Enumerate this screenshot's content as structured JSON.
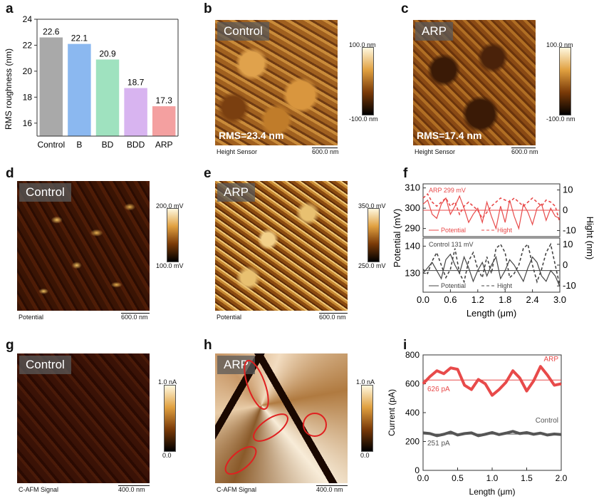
{
  "panel_letters": {
    "a": "a",
    "b": "b",
    "c": "c",
    "d": "d",
    "e": "e",
    "f": "f",
    "g": "g",
    "h": "h",
    "i": "i"
  },
  "chart_data": [
    {
      "id": "a",
      "type": "bar",
      "categories": [
        "Control",
        "B",
        "BD",
        "BDD",
        "ARP"
      ],
      "values": [
        22.6,
        22.1,
        20.9,
        18.7,
        17.3
      ],
      "value_labels": [
        "22.6",
        "22.1",
        "20.9",
        "18.7",
        "17.3"
      ],
      "colors": [
        "#a9a9a9",
        "#8bb8f0",
        "#9fe2bf",
        "#d8b4f0",
        "#f4a0a0"
      ],
      "title": "",
      "xlabel": "",
      "ylabel": "RMS roughness (nm)",
      "ylim": [
        15,
        24
      ],
      "yticks": [
        "16",
        "18",
        "20",
        "22",
        "24"
      ]
    },
    {
      "id": "f",
      "type": "line",
      "xlabel": "Length (μm)",
      "ylabel_left": "Potential (mV)",
      "ylabel_right": "Hight (nm)",
      "xlim": [
        0,
        3.0
      ],
      "xticks": [
        "0.0",
        "0.6",
        "1.2",
        "1.8",
        "2.4",
        "3.0"
      ],
      "top": {
        "annotation": "ARP 299 mV",
        "ylim": [
          286,
          312
        ],
        "yticks": [
          "290",
          "300",
          "310"
        ],
        "y2lim": [
          -13,
          13
        ],
        "y2ticks": [
          "-10",
          "0",
          "10"
        ],
        "mean": 299,
        "legend": [
          "Potential",
          "Hight"
        ],
        "x": [
          0,
          0.1,
          0.2,
          0.3,
          0.4,
          0.5,
          0.6,
          0.7,
          0.8,
          0.9,
          1.0,
          1.1,
          1.2,
          1.3,
          1.4,
          1.5,
          1.6,
          1.7,
          1.8,
          1.9,
          2.0,
          2.1,
          2.2,
          2.3,
          2.4,
          2.5,
          2.6,
          2.7,
          2.8,
          2.9,
          3.0
        ],
        "potential": [
          302,
          304,
          297,
          295,
          302,
          305,
          297,
          301,
          306,
          300,
          293,
          297,
          300,
          293,
          303,
          296,
          290,
          301,
          293,
          304,
          296,
          290,
          302,
          298,
          292,
          300,
          302,
          294,
          300,
          296,
          295
        ],
        "height": [
          6,
          8,
          4,
          2,
          4,
          6,
          2,
          4,
          -2,
          2,
          4,
          2,
          0,
          -4,
          -1,
          2,
          4,
          6,
          5,
          4,
          6,
          4,
          2,
          4,
          6,
          4,
          2,
          5,
          4,
          2,
          -6
        ]
      },
      "bottom": {
        "annotation": "Control  131 mV",
        "ylim": [
          123,
          143
        ],
        "yticks": [
          "130",
          "140"
        ],
        "y2lim": [
          -13,
          13
        ],
        "y2ticks": [
          "-10",
          "0",
          "10"
        ],
        "mean": 131,
        "legend": [
          "Potential",
          "Hight"
        ],
        "x": [
          0,
          0.1,
          0.2,
          0.3,
          0.4,
          0.5,
          0.6,
          0.7,
          0.8,
          0.9,
          1.0,
          1.1,
          1.2,
          1.3,
          1.4,
          1.5,
          1.6,
          1.7,
          1.8,
          1.9,
          2.0,
          2.1,
          2.2,
          2.3,
          2.4,
          2.5,
          2.6,
          2.7,
          2.8,
          2.9,
          3.0
        ],
        "potential": [
          130,
          132,
          134,
          131,
          128,
          135,
          137,
          133,
          130,
          136,
          132,
          127,
          131,
          134,
          129,
          133,
          136,
          128,
          131,
          135,
          133,
          130,
          127,
          132,
          136,
          134,
          129,
          127,
          131,
          129,
          125
        ],
        "height": [
          -2,
          -4,
          2,
          6,
          0,
          -6,
          -2,
          8,
          -4,
          -8,
          2,
          6,
          -2,
          -6,
          4,
          -4,
          8,
          10,
          6,
          -6,
          -4,
          0,
          8,
          10,
          0,
          -8,
          -2,
          6,
          10,
          0,
          -10
        ]
      }
    },
    {
      "id": "i",
      "type": "line",
      "xlabel": "Length (μm)",
      "ylabel": "Current (pA)",
      "xlim": [
        0,
        2.0
      ],
      "xticks": [
        "0.0",
        "0.5",
        "1.0",
        "1.5",
        "2.0"
      ],
      "ylim": [
        0,
        800
      ],
      "yticks": [
        "0",
        "200",
        "400",
        "600",
        "800"
      ],
      "series": [
        {
          "name": "ARP",
          "mean": 626,
          "mean_label": "626 pA",
          "color": "#e84a4a",
          "x": [
            0,
            0.1,
            0.2,
            0.3,
            0.4,
            0.5,
            0.6,
            0.7,
            0.8,
            0.9,
            1.0,
            1.1,
            1.2,
            1.3,
            1.4,
            1.5,
            1.6,
            1.7,
            1.8,
            1.9,
            2.0
          ],
          "y": [
            600,
            650,
            690,
            670,
            710,
            700,
            590,
            560,
            630,
            600,
            520,
            560,
            610,
            690,
            640,
            550,
            620,
            720,
            660,
            590,
            600
          ]
        },
        {
          "name": "Control",
          "mean": 251,
          "mean_label": "251 pA",
          "color": "#555555",
          "x": [
            0,
            0.1,
            0.2,
            0.3,
            0.4,
            0.5,
            0.6,
            0.7,
            0.8,
            0.9,
            1.0,
            1.1,
            1.2,
            1.3,
            1.4,
            1.5,
            1.6,
            1.7,
            1.8,
            1.9,
            2.0
          ],
          "y": [
            260,
            255,
            240,
            250,
            265,
            245,
            255,
            260,
            240,
            250,
            262,
            248,
            258,
            270,
            255,
            262,
            250,
            258,
            245,
            252,
            248
          ]
        }
      ]
    }
  ],
  "images": {
    "b": {
      "tag": "Control",
      "rms": "RMS=23.4 nm",
      "sensor": "Height Sensor",
      "scale": "600.0 nm",
      "cmax": "100.0 nm",
      "cmin": "-100.0 nm"
    },
    "c": {
      "tag": "ARP",
      "rms": "RMS=17.4 nm",
      "sensor": "Height Sensor",
      "scale": "600.0 nm",
      "cmax": "100.0 nm",
      "cmin": "-100.0 nm"
    },
    "d": {
      "tag": "Control",
      "sensor": "Potential",
      "scale": "600.0 nm",
      "cmax": "200.0 mV",
      "cmin": "100.0 mV"
    },
    "e": {
      "tag": "ARP",
      "sensor": "Potential",
      "scale": "600.0 nm",
      "cmax": "350.0 mV",
      "cmin": "250.0 mV"
    },
    "g": {
      "tag": "Control",
      "sensor": "C-AFM Signal",
      "scale": "400.0 nm",
      "cmax": "1.0 nA",
      "cmin": "0.0"
    },
    "h": {
      "tag": "ARP",
      "sensor": "C-AFM Signal",
      "scale": "400.0 nm",
      "cmax": "1.0 nA",
      "cmin": "0.0"
    }
  },
  "colors": {
    "arp": "#e84a4a",
    "control": "#555555"
  }
}
